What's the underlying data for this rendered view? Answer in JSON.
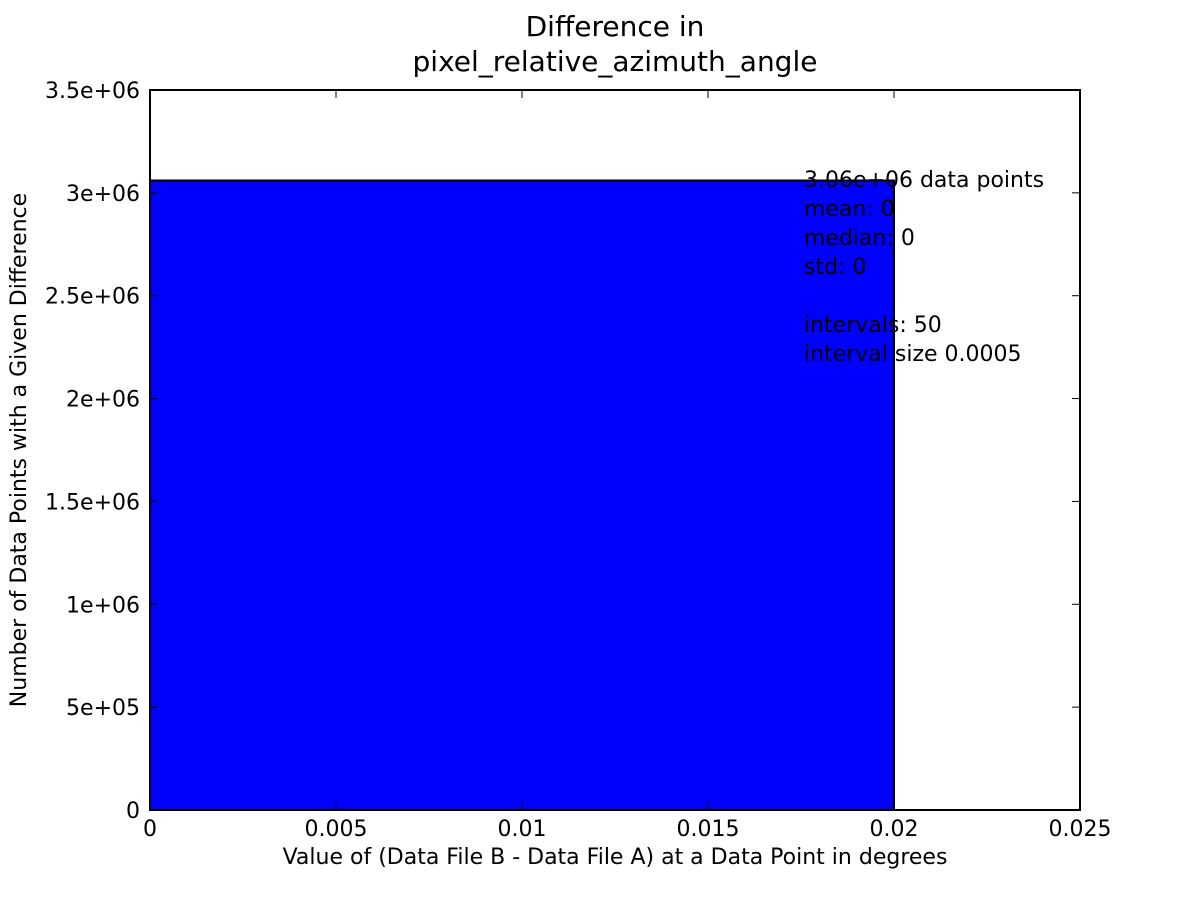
{
  "chart_data": {
    "type": "bar",
    "title": [
      "Difference in",
      "pixel_relative_azimuth_angle"
    ],
    "xlabel": "Value of (Data File B - Data File A) at a Data Point in degrees",
    "ylabel": "Number of Data Points with a Given Difference",
    "xlim": [
      0,
      0.025
    ],
    "ylim": [
      0,
      3500000
    ],
    "x_ticks": [
      {
        "value": 0,
        "label": "0"
      },
      {
        "value": 0.005,
        "label": "0.005"
      },
      {
        "value": 0.01,
        "label": "0.01"
      },
      {
        "value": 0.015,
        "label": "0.015"
      },
      {
        "value": 0.02,
        "label": "0.02"
      },
      {
        "value": 0.025,
        "label": "0.025"
      }
    ],
    "y_ticks": [
      {
        "value": 0,
        "label": "0"
      },
      {
        "value": 500000,
        "label": "5e+05"
      },
      {
        "value": 1000000,
        "label": "1e+06"
      },
      {
        "value": 1500000,
        "label": "1.5e+06"
      },
      {
        "value": 2000000,
        "label": "2e+06"
      },
      {
        "value": 2500000,
        "label": "2.5e+06"
      },
      {
        "value": 3000000,
        "label": "3e+06"
      },
      {
        "value": 3500000,
        "label": "3.5e+06"
      }
    ],
    "bars": [
      {
        "x_start": 0,
        "x_end": 0.02,
        "value": 3060000
      }
    ],
    "bar_color": "#0000ff",
    "grid": false,
    "legend": "none",
    "annotation_lines": [
      "3.06e+06 data points",
      "mean: 0",
      "median: 0",
      "std: 0",
      "",
      "intervals: 50",
      "interval size 0.0005"
    ]
  }
}
